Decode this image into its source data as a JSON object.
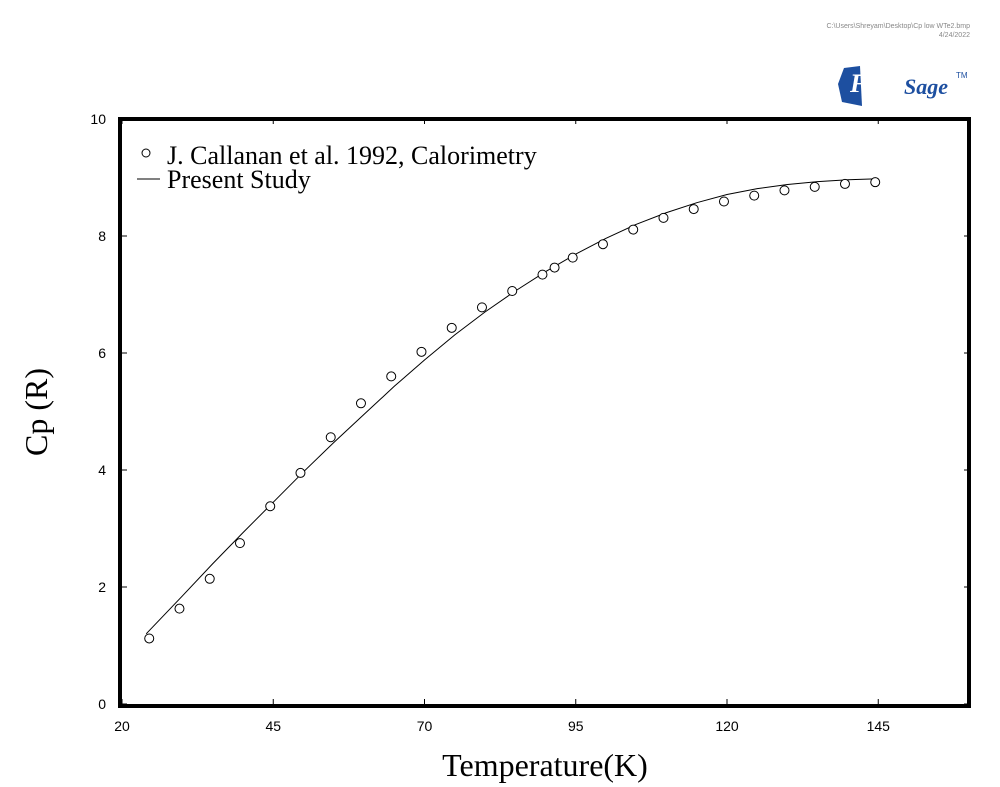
{
  "file_info": {
    "path": "C:\\Users\\Shreyam\\Desktop\\Cp low WTe2.bmp",
    "date": "4/24/2022"
  },
  "logo": {
    "text_a": "Fact",
    "text_b": "Sage",
    "tm": "TM"
  },
  "chart_data": {
    "type": "scatter",
    "title": "",
    "xlabel": "Temperature(K)",
    "ylabel": "Cp (R)",
    "xlim": [
      20,
      160
    ],
    "ylim": [
      0,
      10
    ],
    "x_ticks": [
      20,
      45,
      70,
      95,
      120,
      145
    ],
    "y_ticks": [
      0,
      2,
      4,
      6,
      8,
      10
    ],
    "legend_position": "top-left",
    "series": [
      {
        "name": "J. Callanan et al. 1992, Calorimetry",
        "type": "scatter",
        "marker": "open-circle",
        "x": [
          24.5,
          29.5,
          34.5,
          39.5,
          44.5,
          49.5,
          54.5,
          59.5,
          64.5,
          69.5,
          74.5,
          79.5,
          84.5,
          89.5,
          91.5,
          94.5,
          99.5,
          104.5,
          109.5,
          114.5,
          119.5,
          124.5,
          129.5,
          134.5,
          139.5,
          144.5
        ],
        "y": [
          1.12,
          1.63,
          2.14,
          2.75,
          3.38,
          3.95,
          4.56,
          5.14,
          5.6,
          6.02,
          6.43,
          6.78,
          7.06,
          7.34,
          7.46,
          7.63,
          7.86,
          8.11,
          8.31,
          8.46,
          8.59,
          8.69,
          8.78,
          8.84,
          8.89,
          8.92
        ]
      },
      {
        "name": "Present Study",
        "type": "line",
        "x": [
          24,
          30,
          35,
          40,
          45,
          50,
          55,
          60,
          65,
          70,
          75,
          80,
          85,
          90,
          95,
          100,
          105,
          110,
          115,
          120,
          125,
          130,
          135,
          140,
          145
        ],
        "y": [
          1.2,
          1.85,
          2.4,
          2.93,
          3.45,
          3.97,
          4.47,
          4.95,
          5.43,
          5.88,
          6.31,
          6.7,
          7.06,
          7.39,
          7.69,
          7.96,
          8.2,
          8.4,
          8.57,
          8.71,
          8.81,
          8.88,
          8.93,
          8.96,
          8.98
        ]
      }
    ]
  }
}
